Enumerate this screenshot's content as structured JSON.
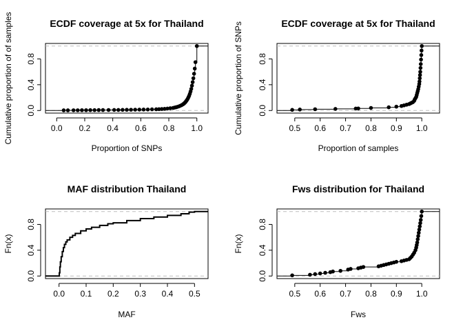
{
  "chart_data": [
    {
      "type": "scatter",
      "title": "ECDF coverage at 5x for Thailand",
      "xlabel": "Proportion of SNPs",
      "ylabel": "Cumulative proportion of of samples",
      "xlim": [
        -0.08,
        1.08
      ],
      "ylim": [
        -0.04,
        1.04
      ],
      "xticks": [
        "0.0",
        "0.2",
        "0.4",
        "0.6",
        "0.8",
        "1.0"
      ],
      "yticks": [
        "0.0",
        "0.4",
        "0.8"
      ],
      "ref_lines_y": [
        0,
        1
      ],
      "grid": false,
      "show_points": true,
      "x": [
        0.05,
        0.08,
        0.12,
        0.15,
        0.18,
        0.21,
        0.24,
        0.27,
        0.3,
        0.33,
        0.37,
        0.41,
        0.44,
        0.47,
        0.5,
        0.53,
        0.56,
        0.59,
        0.62,
        0.65,
        0.68,
        0.71,
        0.73,
        0.75,
        0.77,
        0.79,
        0.81,
        0.83,
        0.84,
        0.85,
        0.86,
        0.87,
        0.88,
        0.89,
        0.9,
        0.905,
        0.91,
        0.915,
        0.92,
        0.925,
        0.93,
        0.935,
        0.94,
        0.945,
        0.95,
        0.955,
        0.96,
        0.965,
        0.97,
        0.975,
        0.98,
        0.985,
        0.99,
        1.0
      ],
      "y": [
        0.003,
        0.003,
        0.004,
        0.004,
        0.005,
        0.005,
        0.006,
        0.006,
        0.007,
        0.007,
        0.008,
        0.009,
        0.009,
        0.01,
        0.011,
        0.012,
        0.013,
        0.014,
        0.015,
        0.016,
        0.018,
        0.019,
        0.021,
        0.023,
        0.026,
        0.03,
        0.035,
        0.04,
        0.045,
        0.05,
        0.056,
        0.063,
        0.072,
        0.082,
        0.095,
        0.103,
        0.112,
        0.123,
        0.135,
        0.15,
        0.165,
        0.183,
        0.205,
        0.23,
        0.26,
        0.295,
        0.335,
        0.385,
        0.44,
        0.5,
        0.57,
        0.65,
        0.75,
        1.0
      ]
    },
    {
      "type": "scatter",
      "title": "ECDF coverage at 5x for Thailand",
      "xlabel": "Proportion of samples",
      "ylabel": "Cumulative proportion of SNPs",
      "xlim": [
        0.43,
        1.07
      ],
      "ylim": [
        -0.04,
        1.04
      ],
      "xticks": [
        "0.5",
        "0.6",
        "0.7",
        "0.8",
        "0.9",
        "1.0"
      ],
      "yticks": [
        "0.0",
        "0.4",
        "0.8"
      ],
      "ref_lines_y": [
        0,
        1
      ],
      "grid": false,
      "show_points": true,
      "x": [
        0.49,
        0.52,
        0.58,
        0.66,
        0.74,
        0.75,
        0.8,
        0.87,
        0.9,
        0.92,
        0.93,
        0.94,
        0.95,
        0.955,
        0.96,
        0.965,
        0.97,
        0.972,
        0.975,
        0.978,
        0.98,
        0.982,
        0.984,
        0.986,
        0.988,
        0.99,
        0.991,
        0.992,
        0.993,
        0.994,
        0.995,
        0.996,
        0.997,
        0.998,
        0.999,
        1.0
      ],
      "y": [
        0.01,
        0.015,
        0.02,
        0.025,
        0.03,
        0.032,
        0.04,
        0.05,
        0.06,
        0.07,
        0.08,
        0.09,
        0.1,
        0.11,
        0.12,
        0.13,
        0.15,
        0.17,
        0.19,
        0.21,
        0.24,
        0.27,
        0.3,
        0.33,
        0.37,
        0.41,
        0.45,
        0.5,
        0.55,
        0.6,
        0.66,
        0.72,
        0.79,
        0.86,
        0.93,
        1.0
      ]
    },
    {
      "type": "line",
      "title": "MAF distribution Thailand",
      "xlabel": "MAF",
      "ylabel": "Fn(x)",
      "xlim": [
        -0.05,
        0.55
      ],
      "ylim": [
        -0.04,
        1.04
      ],
      "xticks": [
        "0.0",
        "0.1",
        "0.2",
        "0.3",
        "0.4",
        "0.5"
      ],
      "yticks": [
        "0.0",
        "0.4",
        "0.8"
      ],
      "ref_lines_y": [
        0,
        1
      ],
      "grid": false,
      "show_points": false,
      "x": [
        0.0,
        0.001,
        0.003,
        0.005,
        0.008,
        0.012,
        0.016,
        0.02,
        0.025,
        0.03,
        0.04,
        0.05,
        0.06,
        0.08,
        0.1,
        0.12,
        0.15,
        0.18,
        0.2,
        0.25,
        0.3,
        0.35,
        0.4,
        0.45,
        0.48,
        0.5
      ],
      "y": [
        0.0,
        0.05,
        0.14,
        0.22,
        0.3,
        0.38,
        0.44,
        0.49,
        0.53,
        0.56,
        0.6,
        0.63,
        0.66,
        0.7,
        0.73,
        0.755,
        0.785,
        0.81,
        0.825,
        0.86,
        0.89,
        0.915,
        0.94,
        0.965,
        0.99,
        1.0
      ]
    },
    {
      "type": "scatter",
      "title": "Fws distribution for Thailand",
      "xlabel": "Fws",
      "ylabel": "Fn(x)",
      "xlim": [
        0.43,
        1.07
      ],
      "ylim": [
        -0.04,
        1.04
      ],
      "xticks": [
        "0.5",
        "0.6",
        "0.7",
        "0.8",
        "0.9",
        "1.0"
      ],
      "yticks": [
        "0.0",
        "0.4",
        "0.8"
      ],
      "ref_lines_y": [
        0,
        1
      ],
      "grid": false,
      "show_points": true,
      "x": [
        0.49,
        0.56,
        0.58,
        0.6,
        0.62,
        0.64,
        0.65,
        0.68,
        0.71,
        0.72,
        0.75,
        0.76,
        0.77,
        0.83,
        0.84,
        0.85,
        0.86,
        0.87,
        0.88,
        0.89,
        0.9,
        0.92,
        0.93,
        0.94,
        0.95,
        0.955,
        0.96,
        0.965,
        0.97,
        0.975,
        0.978,
        0.98,
        0.982,
        0.984,
        0.986,
        0.988,
        0.99,
        0.992,
        0.994,
        0.996,
        0.998,
        1.0
      ],
      "y": [
        0.01,
        0.02,
        0.03,
        0.04,
        0.05,
        0.06,
        0.07,
        0.08,
        0.1,
        0.11,
        0.12,
        0.13,
        0.14,
        0.15,
        0.16,
        0.17,
        0.18,
        0.19,
        0.2,
        0.21,
        0.22,
        0.23,
        0.24,
        0.25,
        0.26,
        0.28,
        0.3,
        0.33,
        0.36,
        0.4,
        0.44,
        0.48,
        0.52,
        0.57,
        0.62,
        0.67,
        0.72,
        0.77,
        0.82,
        0.87,
        0.93,
        1.0
      ]
    }
  ]
}
